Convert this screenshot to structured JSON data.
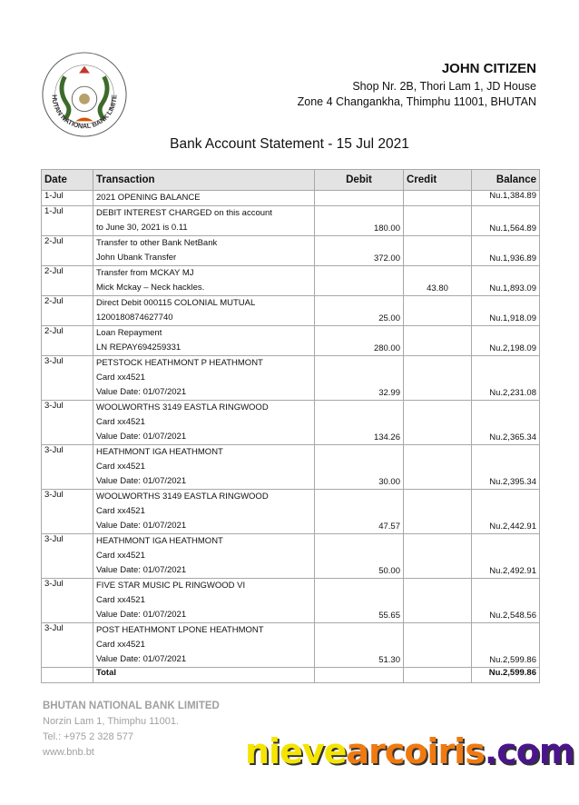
{
  "logo": {
    "text": "BHUTAN NATIONAL BANK LIMITED"
  },
  "account": {
    "name": "JOHN CITIZEN",
    "address_line1": "Shop Nr. 2B, Thori Lam 1, JD House",
    "address_line2": "Zone 4 Changankha, Thimphu 11001, BHUTAN"
  },
  "title": "Bank Account Statement - 15 Jul 2021",
  "table": {
    "headers": {
      "date": "Date",
      "transaction": "Transaction",
      "debit": "Debit",
      "credit": "Credit",
      "balance": "Balance"
    },
    "rows": [
      {
        "date": "1-Jul",
        "lines": [
          "2021 OPENING BALANCE"
        ],
        "debit": "",
        "credit": "",
        "balance": "Nu.1,384.89"
      },
      {
        "date": "1-Jul",
        "lines": [
          "DEBIT INTEREST CHARGED on this account",
          "to June 30, 2021 is 0.11"
        ],
        "debit": "180.00",
        "credit": "",
        "balance": "Nu.1,564.89"
      },
      {
        "date": "2-Jul",
        "lines": [
          "Transfer to other Bank NetBank",
          "John Ubank Transfer"
        ],
        "debit": "372.00",
        "credit": "",
        "balance": "Nu.1,936.89"
      },
      {
        "date": "2-Jul",
        "lines": [
          "Transfer from MCKAY MJ",
          "Mick Mckay – Neck hackles."
        ],
        "debit": "",
        "credit": "43.80",
        "balance": "Nu.1,893.09"
      },
      {
        "date": "2-Jul",
        "lines": [
          "Direct Debit 000115 COLONIAL MUTUAL",
          "1200180874627740"
        ],
        "debit": "25.00",
        "credit": "",
        "balance": "Nu.1,918.09"
      },
      {
        "date": "2-Jul",
        "lines": [
          "Loan Repayment",
          "LN REPAY694259331"
        ],
        "debit": "280.00",
        "credit": "",
        "balance": "Nu.2,198.09"
      },
      {
        "date": "3-Jul",
        "lines": [
          "PETSTOCK HEATHMONT P HEATHMONT",
          "Card xx4521",
          "Value Date: 01/07/2021"
        ],
        "debit": "32.99",
        "credit": "",
        "balance": "Nu.2,231.08"
      },
      {
        "date": "3-Jul",
        "lines": [
          "WOOLWORTHS 3149 EASTLA RINGWOOD",
          "Card xx4521",
          "Value Date: 01/07/2021"
        ],
        "debit": "134.26",
        "credit": "",
        "balance": "Nu.2,365.34"
      },
      {
        "date": "3-Jul",
        "lines": [
          "HEATHMONT IGA HEATHMONT",
          "Card xx4521",
          "Value Date: 01/07/2021"
        ],
        "debit": "30.00",
        "credit": "",
        "balance": "Nu.2,395.34"
      },
      {
        "date": "3-Jul",
        "lines": [
          "WOOLWORTHS 3149 EASTLA RINGWOOD",
          "Card xx4521",
          "Value Date: 01/07/2021"
        ],
        "debit": "47.57",
        "credit": "",
        "balance": "Nu.2,442.91"
      },
      {
        "date": "3-Jul",
        "lines": [
          "HEATHMONT IGA HEATHMONT",
          "Card xx4521",
          "Value Date: 01/07/2021"
        ],
        "debit": "50.00",
        "credit": "",
        "balance": "Nu.2,492.91"
      },
      {
        "date": "3-Jul",
        "lines": [
          "FIVE STAR MUSIC PL RINGWOOD VI",
          "Card xx4521",
          "Value Date: 01/07/2021"
        ],
        "debit": "55.65",
        "credit": "",
        "balance": "Nu.2,548.56"
      },
      {
        "date": "3-Jul",
        "lines": [
          "POST HEATHMONT LPONE HEATHMONT",
          "Card xx4521",
          "Value Date: 01/07/2021"
        ],
        "debit": "51.30",
        "credit": "",
        "balance": "Nu.2,599.86"
      }
    ],
    "total": {
      "label": "Total",
      "balance": "Nu.2,599.86"
    }
  },
  "footer": {
    "bank": "BHUTAN NATIONAL BANK LIMITED",
    "address": "Norzin Lam 1, Thimphu 11001.",
    "tel": "Tel.: +975 2 328 577",
    "web": "www.bnb.bt"
  },
  "watermark": {
    "parts": [
      {
        "text": "nieve",
        "color": "#f5e400"
      },
      {
        "text": "arcoiris",
        "color": "#f07a10"
      },
      {
        "text": ".com",
        "color": "#4b148c"
      }
    ]
  }
}
